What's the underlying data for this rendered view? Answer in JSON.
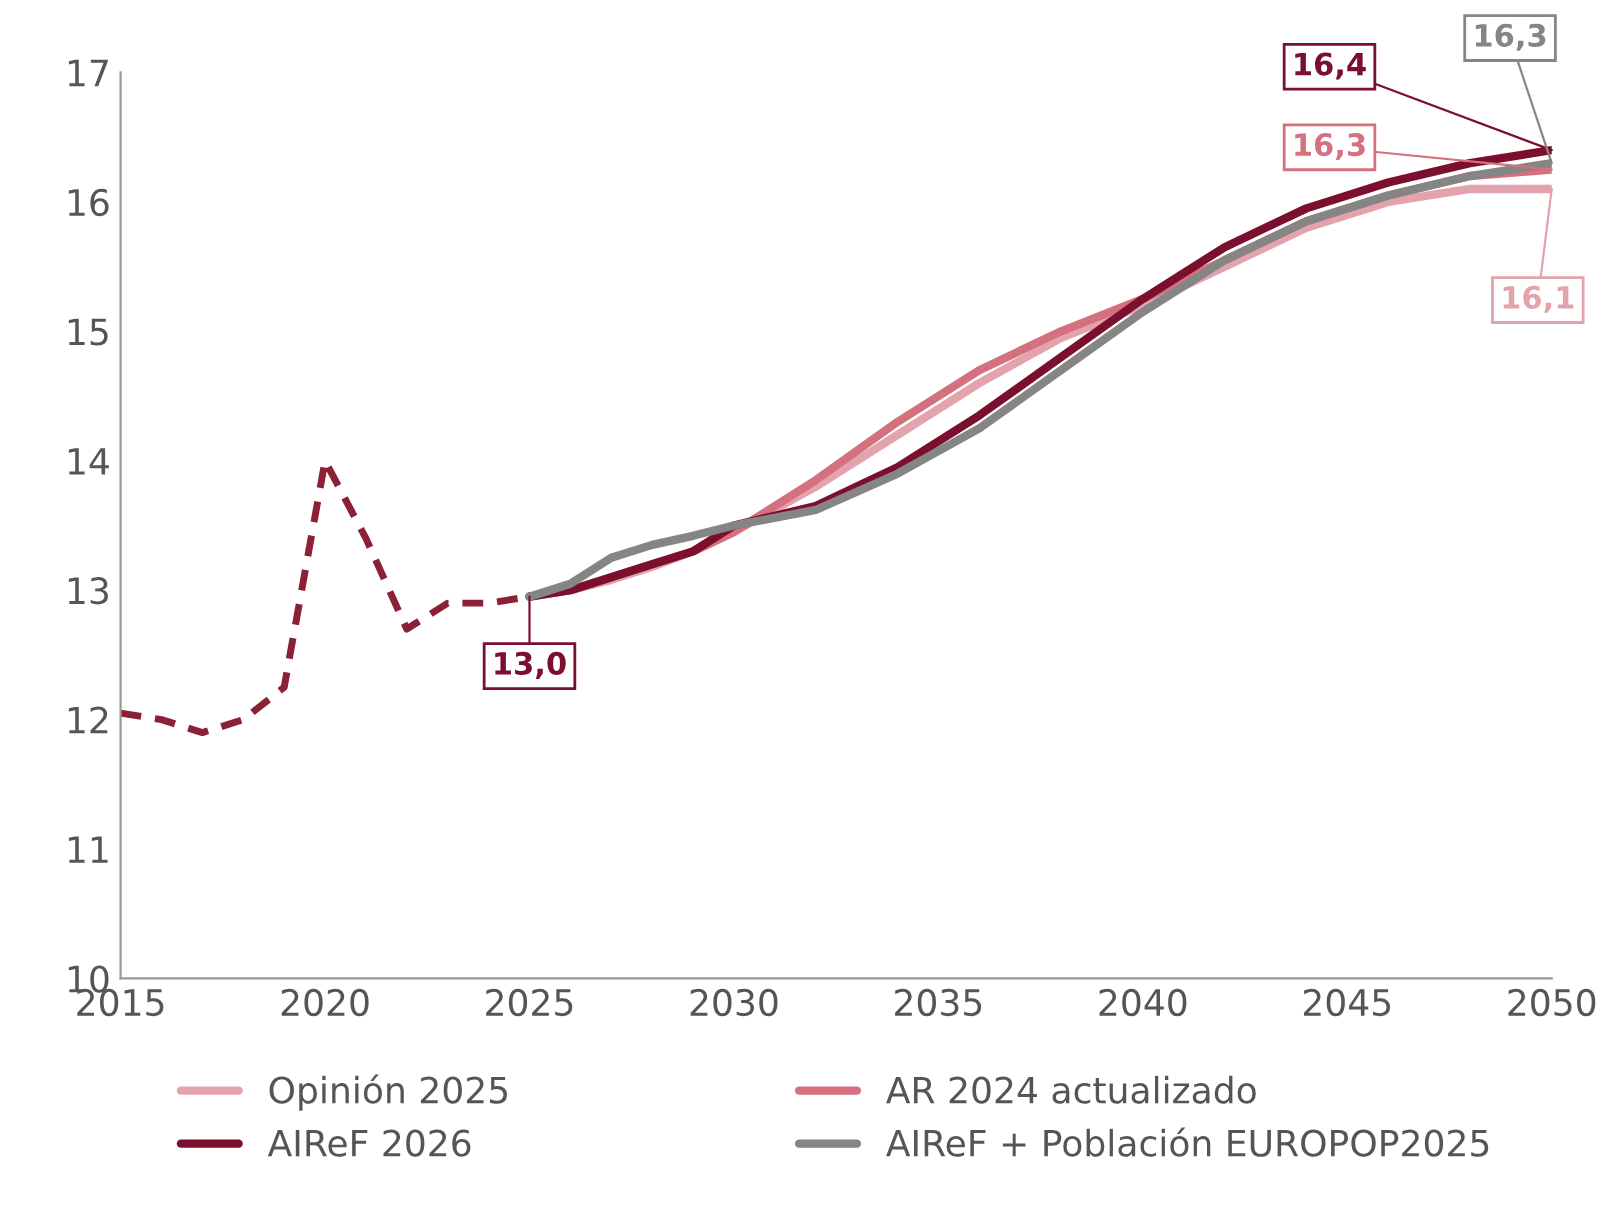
{
  "chart_data": {
    "type": "line",
    "xlim": [
      2015,
      2050
    ],
    "ylim": [
      10,
      17
    ],
    "xticks": [
      2015,
      2020,
      2025,
      2030,
      2035,
      2040,
      2045,
      2050
    ],
    "yticks": [
      10,
      11,
      12,
      13,
      14,
      15,
      16,
      17
    ],
    "grid": false,
    "legend": "bottom",
    "marker": "none",
    "series": [
      {
        "color": "#8c2035",
        "line_style": "dashed",
        "x": [
          2015,
          2016,
          2017,
          2018,
          2019,
          2020,
          2021,
          2022,
          2023,
          2024,
          2025
        ],
        "values": [
          12.05,
          12.0,
          11.9,
          12.0,
          12.25,
          14.0,
          13.4,
          12.7,
          12.9,
          12.9,
          12.95
        ]
      },
      {
        "name": "Opinión 2025",
        "color": "#e3a3ad",
        "line_style": "solid",
        "x": [
          2025,
          2026,
          2027,
          2028,
          2029,
          2030,
          2032,
          2034,
          2036,
          2038,
          2040,
          2042,
          2044,
          2046,
          2048,
          2050
        ],
        "values": [
          12.95,
          13.0,
          13.08,
          13.18,
          13.3,
          13.45,
          13.8,
          14.2,
          14.6,
          14.95,
          15.2,
          15.5,
          15.8,
          16.0,
          16.1,
          16.1
        ],
        "value_labels": [
          null,
          null,
          null,
          null,
          null,
          null,
          null,
          null,
          null,
          null,
          null,
          null,
          null,
          null,
          null,
          "16,1"
        ]
      },
      {
        "name": "AR 2024 actualizado",
        "color": "#d5707e",
        "line_style": "solid",
        "x": [
          2025,
          2026,
          2027,
          2028,
          2029,
          2030,
          2032,
          2034,
          2036,
          2038,
          2040,
          2042,
          2044,
          2046,
          2048,
          2050
        ],
        "values": [
          12.95,
          13.0,
          13.1,
          13.2,
          13.3,
          13.45,
          13.85,
          14.3,
          14.7,
          15.0,
          15.25,
          15.55,
          15.85,
          16.05,
          16.2,
          16.25
        ],
        "value_labels": [
          null,
          null,
          null,
          null,
          null,
          null,
          null,
          null,
          null,
          null,
          null,
          null,
          null,
          null,
          null,
          "16,3"
        ]
      },
      {
        "name": "AIReF 2026",
        "color": "#7a0f2e",
        "line_style": "solid",
        "x": [
          2025,
          2026,
          2027,
          2028,
          2029,
          2030,
          2032,
          2034,
          2036,
          2038,
          2040,
          2042,
          2044,
          2046,
          2048,
          2050
        ],
        "values": [
          12.95,
          13.0,
          13.1,
          13.2,
          13.3,
          13.5,
          13.65,
          13.95,
          14.35,
          14.8,
          15.25,
          15.65,
          15.95,
          16.15,
          16.3,
          16.4
        ],
        "value_labels": [
          "13,0",
          null,
          null,
          null,
          null,
          null,
          null,
          null,
          null,
          null,
          null,
          null,
          null,
          null,
          null,
          "16,4"
        ]
      },
      {
        "name": "AIReF + Población EUROPOP2025",
        "color": "#858585",
        "line_style": "solid",
        "x": [
          2025,
          2026,
          2027,
          2028,
          2029,
          2030,
          2032,
          2034,
          2036,
          2038,
          2040,
          2042,
          2044,
          2046,
          2048,
          2050
        ],
        "values": [
          12.95,
          13.05,
          13.25,
          13.35,
          13.42,
          13.5,
          13.62,
          13.9,
          14.25,
          14.7,
          15.15,
          15.55,
          15.85,
          16.05,
          16.2,
          16.3
        ],
        "value_labels": [
          null,
          null,
          null,
          null,
          null,
          null,
          null,
          null,
          null,
          null,
          null,
          null,
          null,
          null,
          null,
          "16,3"
        ]
      }
    ]
  }
}
